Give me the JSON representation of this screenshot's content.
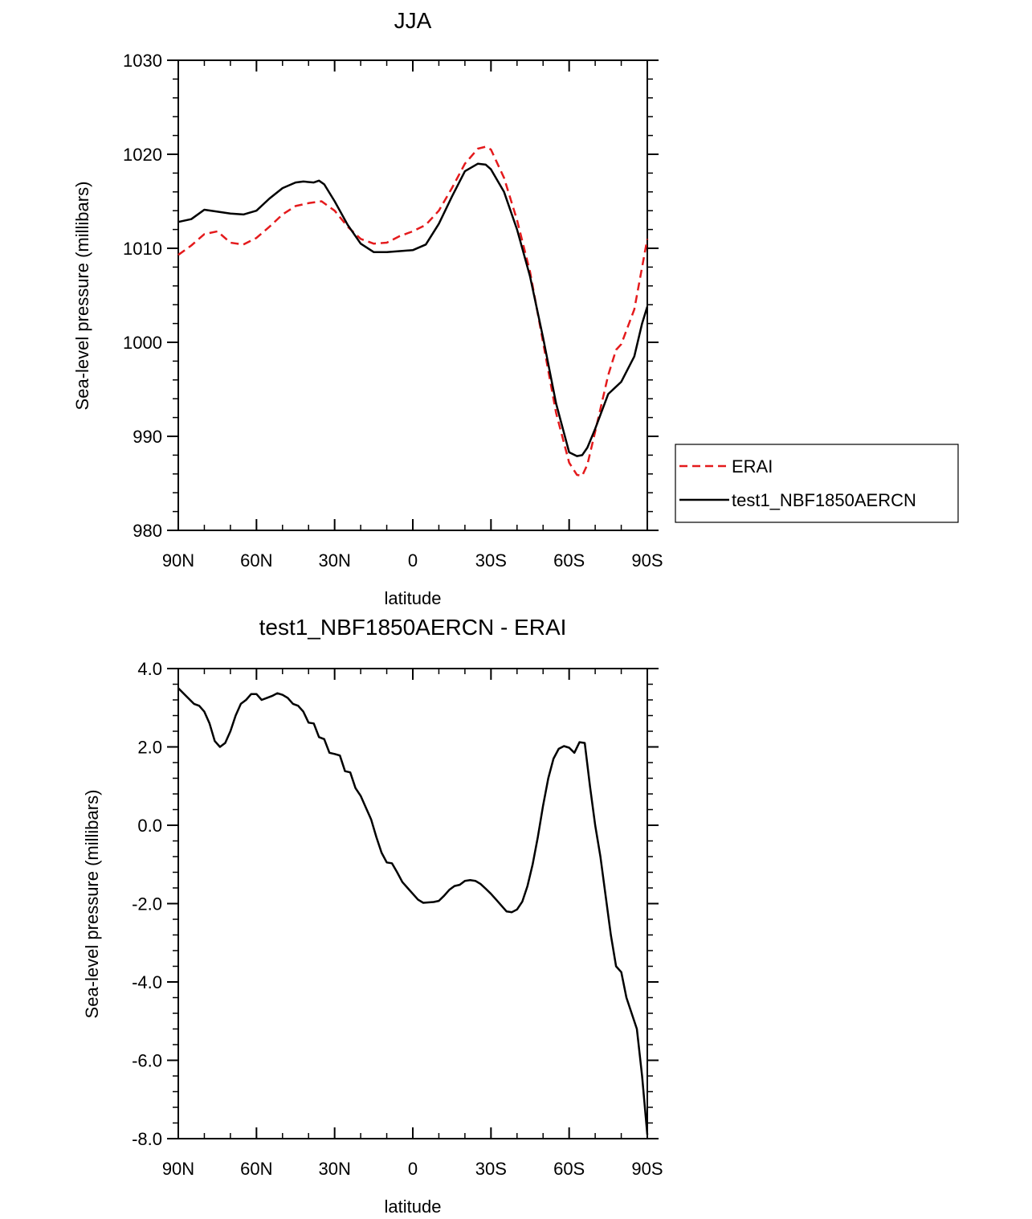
{
  "chart_data": [
    {
      "type": "line",
      "title": "JJA",
      "xlabel": "latitude",
      "ylabel": "Sea-level pressure (millibars)",
      "xlim": [
        90,
        -90
      ],
      "ylim": [
        980,
        1030
      ],
      "xticks": [
        {
          "value": 90,
          "label": "90N"
        },
        {
          "value": 60,
          "label": "60N"
        },
        {
          "value": 30,
          "label": "30N"
        },
        {
          "value": 0,
          "label": "0"
        },
        {
          "value": -30,
          "label": "30S"
        },
        {
          "value": -60,
          "label": "60S"
        },
        {
          "value": -90,
          "label": "90S"
        }
      ],
      "yticks": [
        {
          "value": 980,
          "label": "980"
        },
        {
          "value": 990,
          "label": "990"
        },
        {
          "value": 1000,
          "label": "1000"
        },
        {
          "value": 1010,
          "label": "1010"
        },
        {
          "value": 1020,
          "label": "1020"
        },
        {
          "value": 1030,
          "label": "1030"
        }
      ],
      "legend": {
        "position": "right",
        "entries": [
          "ERAI",
          "test1_NBF1850AERCN"
        ]
      },
      "series": [
        {
          "name": "ERAI",
          "color": "#e41a1c",
          "dash": "dashed",
          "x": [
            90,
            85,
            80,
            75,
            70,
            65,
            60,
            55,
            50,
            45,
            40,
            35,
            30,
            25,
            20,
            15,
            10,
            5,
            0,
            -5,
            -10,
            -15,
            -20,
            -25,
            -28,
            -30,
            -35,
            -40,
            -45,
            -50,
            -55,
            -60,
            -63,
            -65,
            -67,
            -70,
            -75,
            -78,
            -80,
            -85,
            -90
          ],
          "values": [
            1009.3,
            1010.3,
            1011.5,
            1011.8,
            1010.6,
            1010.4,
            1011.1,
            1012.3,
            1013.6,
            1014.5,
            1014.8,
            1015.0,
            1014.0,
            1012.3,
            1011.0,
            1010.5,
            1010.6,
            1011.3,
            1011.8,
            1012.5,
            1014.0,
            1016.4,
            1019.0,
            1020.6,
            1020.8,
            1020.5,
            1017.5,
            1013.0,
            1007.5,
            1000.0,
            992.5,
            987.2,
            985.9,
            985.8,
            987.0,
            990.5,
            996.5,
            999.2,
            999.8,
            1003.5,
            1011.0
          ]
        },
        {
          "name": "test1_NBF1850AERCN",
          "color": "#000000",
          "dash": "solid",
          "x": [
            90,
            85,
            80,
            75,
            70,
            65,
            60,
            55,
            50,
            45,
            42,
            38,
            36,
            34,
            30,
            25,
            20,
            15,
            10,
            5,
            0,
            -5,
            -10,
            -15,
            -20,
            -25,
            -28,
            -30,
            -35,
            -40,
            -45,
            -50,
            -55,
            -60,
            -63,
            -65,
            -67,
            -70,
            -75,
            -80,
            -85,
            -88,
            -90
          ],
          "values": [
            1012.8,
            1013.1,
            1014.1,
            1013.9,
            1013.7,
            1013.6,
            1014.0,
            1015.3,
            1016.4,
            1017.0,
            1017.1,
            1017.0,
            1017.2,
            1016.8,
            1015.0,
            1012.5,
            1010.5,
            1009.6,
            1009.6,
            1009.7,
            1009.8,
            1010.4,
            1012.6,
            1015.5,
            1018.2,
            1019.0,
            1018.9,
            1018.4,
            1016.0,
            1012.0,
            1007.0,
            1000.5,
            993.5,
            988.3,
            987.9,
            988.0,
            988.8,
            990.8,
            994.5,
            995.8,
            998.5,
            1002.0,
            1003.8
          ]
        }
      ]
    },
    {
      "type": "line",
      "title": "test1_NBF1850AERCN - ERAI",
      "xlabel": "latitude",
      "ylabel": "Sea-level pressure (millibars)",
      "xlim": [
        90,
        -90
      ],
      "ylim": [
        -8,
        4
      ],
      "xticks": [
        {
          "value": 90,
          "label": "90N"
        },
        {
          "value": 60,
          "label": "60N"
        },
        {
          "value": 30,
          "label": "30N"
        },
        {
          "value": 0,
          "label": "0"
        },
        {
          "value": -30,
          "label": "30S"
        },
        {
          "value": -60,
          "label": "60S"
        },
        {
          "value": -90,
          "label": "90S"
        }
      ],
      "yticks": [
        {
          "value": -8,
          "label": "-8.0"
        },
        {
          "value": -6,
          "label": "-6.0"
        },
        {
          "value": -4,
          "label": "-4.0"
        },
        {
          "value": -2,
          "label": "-2.0"
        },
        {
          "value": 0,
          "label": "0.0"
        },
        {
          "value": 2,
          "label": "2.0"
        },
        {
          "value": 4,
          "label": "4.0"
        }
      ],
      "series": [
        {
          "name": "test1_NBF1850AERCN - ERAI",
          "color": "#000000",
          "dash": "solid",
          "x": [
            90,
            87,
            84,
            82,
            80,
            78,
            76,
            74,
            72,
            70,
            68,
            66,
            64,
            62,
            60,
            58,
            56,
            54,
            52,
            50,
            48,
            46,
            44,
            42,
            40,
            38,
            36,
            34,
            32,
            30,
            28,
            26,
            24,
            22,
            20,
            18,
            16,
            14,
            12,
            10,
            8,
            6,
            4,
            2,
            0,
            -2,
            -4,
            -6,
            -8,
            -10,
            -12,
            -14,
            -16,
            -18,
            -20,
            -22,
            -24,
            -26,
            -28,
            -30,
            -32,
            -34,
            -36,
            -38,
            -40,
            -42,
            -44,
            -46,
            -48,
            -50,
            -52,
            -54,
            -56,
            -58,
            -60,
            -62,
            -64,
            -66,
            -68,
            -70,
            -72,
            -74,
            -76,
            -78,
            -80,
            -82,
            -84,
            -86,
            -88,
            -90
          ],
          "values": [
            3.5,
            3.3,
            3.1,
            3.05,
            2.9,
            2.6,
            2.15,
            2.0,
            2.1,
            2.4,
            2.8,
            3.1,
            3.2,
            3.35,
            3.35,
            3.2,
            3.25,
            3.3,
            3.37,
            3.33,
            3.25,
            3.1,
            3.05,
            2.9,
            2.62,
            2.6,
            2.25,
            2.2,
            1.85,
            1.82,
            1.78,
            1.38,
            1.35,
            0.95,
            0.75,
            0.45,
            0.15,
            -0.3,
            -0.7,
            -0.95,
            -0.97,
            -1.2,
            -1.45,
            -1.6,
            -1.75,
            -1.9,
            -1.98,
            -1.97,
            -1.96,
            -1.93,
            -1.8,
            -1.65,
            -1.55,
            -1.52,
            -1.42,
            -1.4,
            -1.42,
            -1.5,
            -1.62,
            -1.75,
            -1.9,
            -2.05,
            -2.2,
            -2.22,
            -2.15,
            -1.95,
            -1.55,
            -1.0,
            -0.3,
            0.5,
            1.2,
            1.7,
            1.95,
            2.02,
            1.98,
            1.85,
            2.12,
            2.1,
            1.0,
            0.0,
            -0.8,
            -1.8,
            -2.8,
            -3.6,
            -3.75,
            -4.4,
            -4.8,
            -5.2,
            -6.4,
            -7.9
          ]
        }
      ]
    }
  ]
}
